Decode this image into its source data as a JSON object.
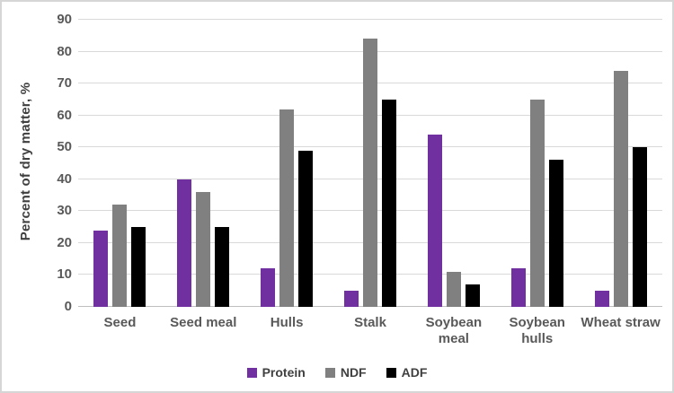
{
  "chart_data": {
    "type": "bar",
    "title": "",
    "xlabel": "",
    "ylabel": "Percent of dry matter, %",
    "ylim": [
      0,
      90
    ],
    "yticks": [
      0,
      10,
      20,
      30,
      40,
      50,
      60,
      70,
      80,
      90
    ],
    "grid": "horizontal",
    "legend_position": "bottom-center",
    "categories": [
      "Seed",
      "Seed meal",
      "Hulls",
      "Stalk",
      "Soybean meal",
      "Soybean hulls",
      "Wheat straw"
    ],
    "categories_lines": [
      [
        "Seed"
      ],
      [
        "Seed meal"
      ],
      [
        "Hulls"
      ],
      [
        "Stalk"
      ],
      [
        "Soybean",
        "meal"
      ],
      [
        "Soybean",
        "hulls"
      ],
      [
        "Wheat straw"
      ]
    ],
    "series": [
      {
        "name": "Protein",
        "color": "#7030A0",
        "values": [
          24,
          40,
          12,
          5,
          54,
          12,
          5
        ]
      },
      {
        "name": "NDF",
        "color": "#808080",
        "values": [
          32,
          36,
          62,
          84,
          11,
          65,
          74
        ]
      },
      {
        "name": "ADF",
        "color": "#000000",
        "values": [
          25,
          25,
          49,
          65,
          7,
          46,
          50
        ]
      }
    ],
    "colors": {
      "gridline": "#d9d9d9",
      "axis_line": "#bfbfbf",
      "tick_text": "#595959",
      "category_text": "#595959",
      "axis_title_text": "#3f3f3f",
      "legend_text": "#404040",
      "background": "#ffffff",
      "frame_border": "#d6d6d6"
    }
  }
}
